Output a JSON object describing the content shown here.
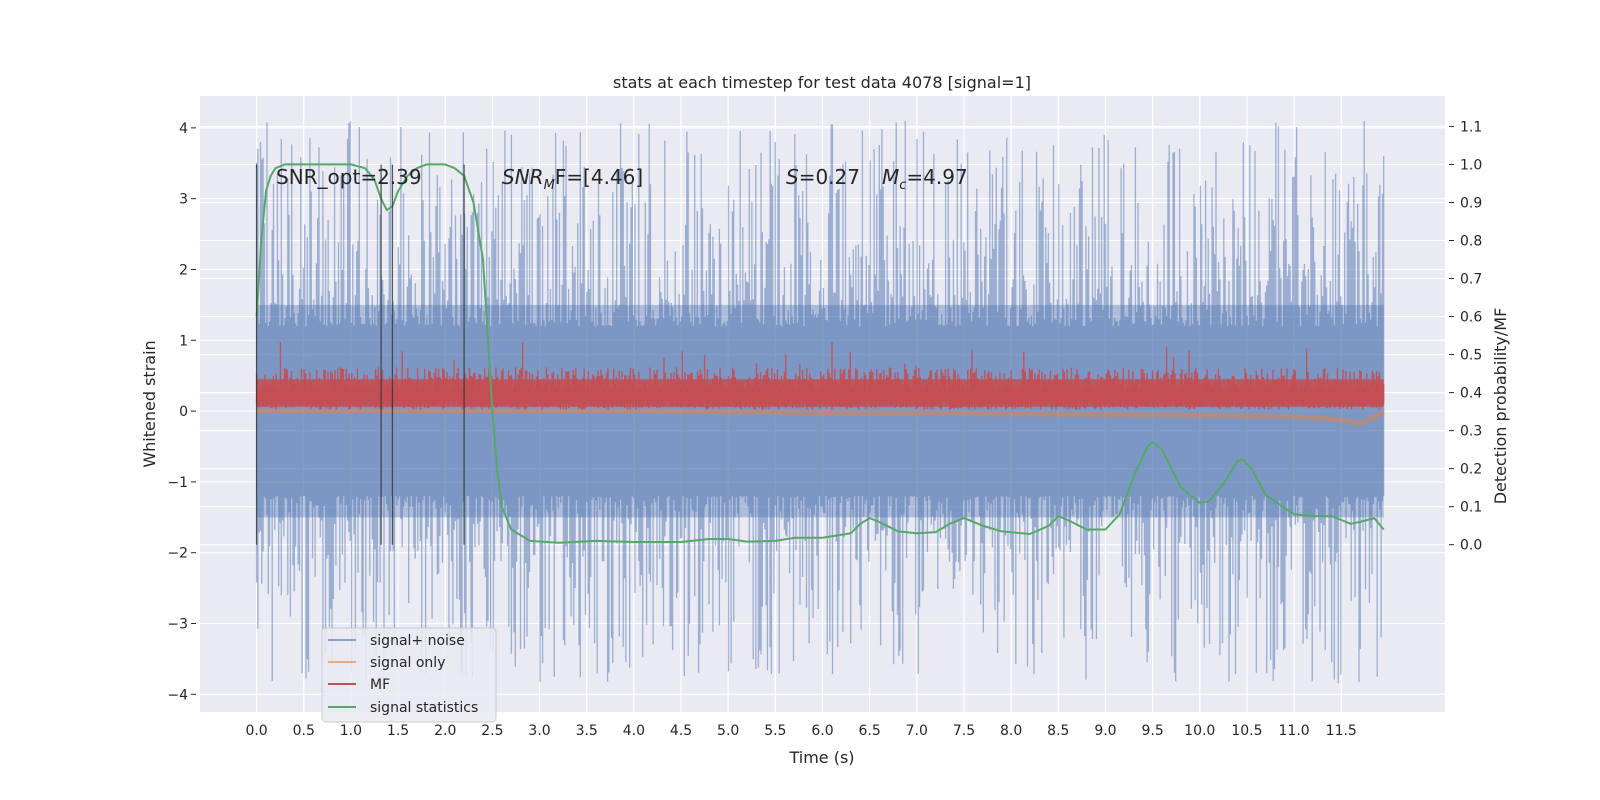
{
  "chart_data": {
    "type": "line",
    "title": "stats at each timestep for test data 4078 [signal=1]",
    "xlabel": "Time (s)",
    "ylabel": "Whitened strain",
    "y2label": "Detection probability/MF",
    "xlim": [
      -0.6,
      12.6
    ],
    "ylim": [
      -4.25,
      4.45
    ],
    "y2lim": [
      -0.44,
      1.18
    ],
    "xticks": [
      "0.0",
      "0.5",
      "1.0",
      "1.5",
      "2.0",
      "2.5",
      "3.0",
      "3.5",
      "4.0",
      "4.5",
      "5.0",
      "5.5",
      "6.0",
      "6.5",
      "7.0",
      "7.5",
      "8.0",
      "8.5",
      "9.0",
      "9.5",
      "10.0",
      "10.5",
      "11.0",
      "11.5"
    ],
    "yticks": [
      "4",
      "3",
      "2",
      "1",
      "0",
      "−1",
      "−2",
      "−3",
      "−4"
    ],
    "y2ticks": [
      "1.1",
      "1.0",
      "0.9",
      "0.8",
      "0.7",
      "0.6",
      "0.5",
      "0.4",
      "0.3",
      "0.2",
      "0.1",
      "0.0"
    ],
    "grid": true,
    "legend_position": "lower-left",
    "background": "#eaeaf2",
    "colors": {
      "signal_noise": "#4c72b0",
      "signal_only": "#dd8452",
      "mf": "#c44e52",
      "statistics": "#55a868",
      "vlines": "#333333"
    },
    "annotations": {
      "snr_opt": "SNR_opt=2.39",
      "snr_mf_base": "SNR",
      "snr_mf_sub": "M",
      "snr_mf_rest": "F=[4.46]",
      "s_sym": "S",
      "s_val": "=0.27",
      "mc_sym": "M",
      "mc_sub": "c",
      "mc_val": "=4.97"
    },
    "vertical_lines_x": [
      0.0,
      1.32,
      1.44,
      2.2
    ],
    "series": [
      {
        "name": "signal+ noise",
        "band": {
          "x_start": 0.0,
          "x_end": 11.95,
          "core_low": -1.5,
          "core_high": 1.5,
          "spike_high": 4.1,
          "spike_low": -3.85
        }
      },
      {
        "name": "signal only",
        "x": [
          0.0,
          2.0,
          4.0,
          6.0,
          8.0,
          10.0,
          11.0,
          11.5,
          11.7,
          11.95
        ],
        "y": [
          0.0,
          0.0,
          0.0,
          -0.02,
          -0.04,
          -0.06,
          -0.08,
          -0.12,
          -0.18,
          -0.02
        ]
      },
      {
        "name": "MF",
        "band": {
          "x_start": 0.0,
          "x_end": 11.95,
          "low": 0.02,
          "high": 0.62,
          "peak": 1.0
        }
      },
      {
        "name": "signal statistics",
        "x": [
          0.0,
          0.05,
          0.1,
          0.15,
          0.2,
          0.3,
          0.5,
          0.8,
          1.0,
          1.15,
          1.25,
          1.32,
          1.38,
          1.44,
          1.5,
          1.6,
          1.7,
          1.8,
          2.0,
          2.1,
          2.2,
          2.3,
          2.4,
          2.45,
          2.5,
          2.55,
          2.6,
          2.7,
          2.9,
          3.2,
          3.6,
          4.0,
          4.5,
          4.8,
          5.0,
          5.2,
          5.5,
          5.7,
          6.0,
          6.3,
          6.4,
          6.5,
          6.6,
          6.8,
          7.0,
          7.2,
          7.35,
          7.5,
          7.7,
          7.9,
          8.2,
          8.4,
          8.5,
          8.6,
          8.8,
          9.0,
          9.15,
          9.3,
          9.45,
          9.5,
          9.6,
          9.7,
          9.8,
          10.0,
          10.1,
          10.25,
          10.4,
          10.45,
          10.55,
          10.7,
          11.0,
          11.2,
          11.4,
          11.5,
          11.6,
          11.7,
          11.85,
          11.95
        ],
        "y": [
          0.6,
          0.8,
          0.93,
          0.97,
          0.99,
          1.0,
          1.0,
          1.0,
          1.0,
          0.99,
          0.96,
          0.91,
          0.88,
          0.89,
          0.93,
          0.97,
          0.99,
          1.0,
          1.0,
          0.99,
          0.97,
          0.9,
          0.75,
          0.55,
          0.35,
          0.2,
          0.1,
          0.04,
          0.01,
          0.005,
          0.01,
          0.007,
          0.007,
          0.015,
          0.015,
          0.008,
          0.01,
          0.018,
          0.018,
          0.03,
          0.055,
          0.07,
          0.06,
          0.035,
          0.03,
          0.033,
          0.055,
          0.07,
          0.05,
          0.035,
          0.028,
          0.05,
          0.075,
          0.065,
          0.04,
          0.04,
          0.08,
          0.18,
          0.26,
          0.27,
          0.25,
          0.2,
          0.15,
          0.11,
          0.115,
          0.16,
          0.22,
          0.225,
          0.2,
          0.13,
          0.08,
          0.075,
          0.075,
          0.065,
          0.055,
          0.06,
          0.07,
          0.04
        ]
      }
    ]
  }
}
